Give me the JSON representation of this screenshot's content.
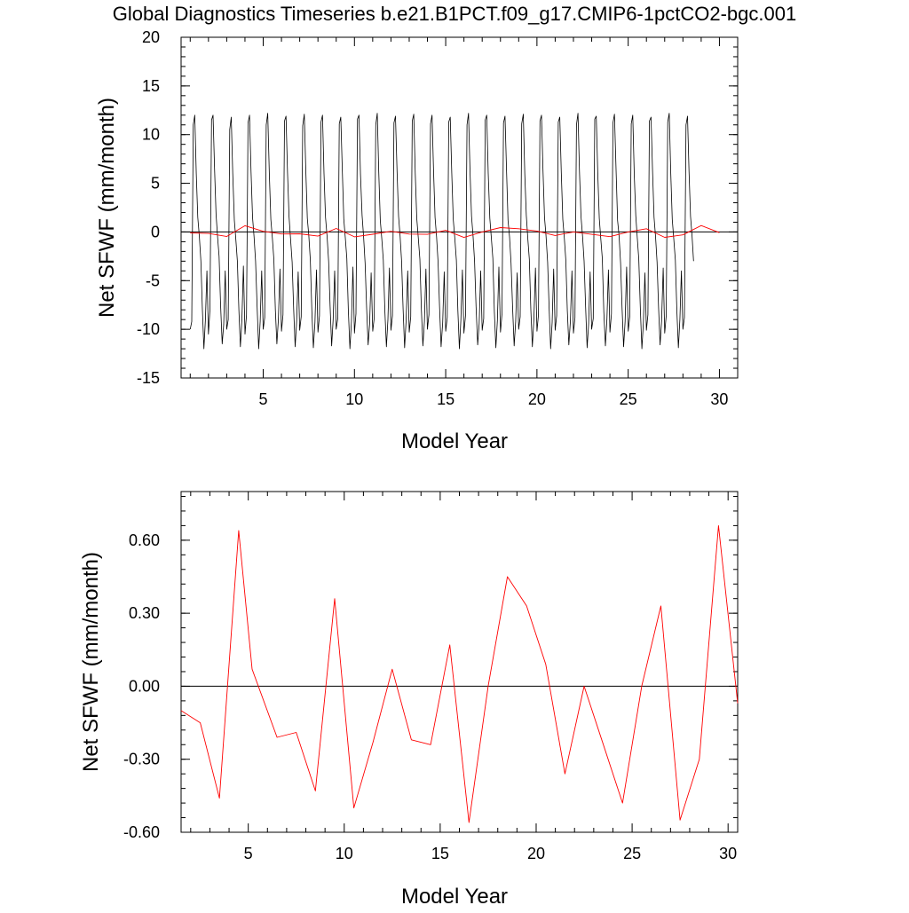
{
  "title": "Global Diagnostics Timeseries b.e21.B1PCT.f09_g17.CMIP6-1pctCO2-bgc.001",
  "colors": {
    "monthly": "#000000",
    "annual": "#ff0000",
    "zero_line": "#000000",
    "axes": "#000000"
  },
  "chart_data": [
    {
      "type": "line",
      "xlabel": "Model Year",
      "ylabel": "Net SFWF (mm/month)",
      "xlim": [
        0.5,
        31.0
      ],
      "ylim": [
        -15,
        20
      ],
      "x_ticks": [
        "5",
        "10",
        "15",
        "20",
        "25",
        "30"
      ],
      "y_ticks": [
        "-15",
        "-10",
        "-5",
        "0",
        "5",
        "10",
        "15",
        "20"
      ],
      "zero_line": true,
      "series": [
        {
          "color": "black",
          "values": [
            -10.0,
            -9.2,
            11.0,
            12.0,
            6.0,
            1.5,
            -0.5,
            -3.0,
            -8.0,
            -12.0,
            -9.0,
            -4.0,
            -10.5,
            -8.0,
            11.5,
            12.0,
            6.5,
            1.8,
            -0.5,
            -2.5,
            -7.5,
            -11.5,
            -9.5,
            -4.0,
            -10.0,
            -9.0,
            10.5,
            11.8,
            6.0,
            1.2,
            -0.8,
            -3.0,
            -8.0,
            -11.8,
            -9.0,
            -3.5,
            -10.5,
            -8.5,
            11.2,
            12.0,
            6.2,
            1.5,
            -0.5,
            -3.0,
            -7.8,
            -12.0,
            -9.2,
            -4.0,
            -10.0,
            -8.8,
            11.0,
            12.2,
            6.0,
            1.3,
            -0.6,
            -2.8,
            -8.0,
            -11.5,
            -9.0,
            -3.8,
            -10.2,
            -8.5,
            11.4,
            11.9,
            6.1,
            1.6,
            -0.7,
            -3.1,
            -7.9,
            -11.8,
            -9.1,
            -4.1,
            -10.1,
            -8.7,
            10.9,
            12.1,
            6.3,
            1.4,
            -0.4,
            -2.9,
            -8.1,
            -11.9,
            -9.3,
            -3.9,
            -10.3,
            -8.6,
            11.3,
            12.0,
            6.0,
            1.5,
            -0.5,
            -3.0,
            -7.7,
            -11.7,
            -9.0,
            -4.0,
            -10.0,
            -8.9,
            11.1,
            11.8,
            6.4,
            1.3,
            -0.6,
            -2.7,
            -8.0,
            -12.0,
            -9.2,
            -3.6,
            -10.4,
            -8.4,
            11.6,
            12.0,
            5.9,
            1.7,
            -0.5,
            -3.2,
            -7.8,
            -11.6,
            -9.4,
            -4.2,
            -10.2,
            -8.8,
            11.0,
            12.2,
            6.1,
            1.2,
            -0.7,
            -2.9,
            -8.2,
            -11.8,
            -9.0,
            -3.7,
            -10.1,
            -8.6,
            11.2,
            11.9,
            6.2,
            1.6,
            -0.4,
            -3.0,
            -7.9,
            -11.9,
            -9.1,
            -4.0,
            -10.3,
            -8.7,
            11.4,
            12.1,
            6.0,
            1.4,
            -0.6,
            -2.8,
            -8.0,
            -11.7,
            -9.2,
            -3.8,
            -10.0,
            -8.5,
            11.1,
            12.0,
            6.3,
            1.5,
            -0.5,
            -3.1,
            -7.8,
            -11.8,
            -9.3,
            -4.1,
            -10.2,
            -8.8,
            11.3,
            11.8,
            6.1,
            1.3,
            -0.7,
            -2.9,
            -8.1,
            -12.0,
            -9.0,
            -3.9,
            -10.4,
            -8.6,
            11.0,
            12.2,
            6.2,
            1.6,
            -0.4,
            -3.0,
            -7.7,
            -11.6,
            -9.4,
            -4.0,
            -10.1,
            -8.9,
            11.5,
            12.0,
            6.0,
            1.4,
            -0.6,
            -2.7,
            -8.2,
            -11.9,
            -9.1,
            -3.6,
            -10.3,
            -8.4,
            11.2,
            11.9,
            6.4,
            1.2,
            -0.5,
            -3.2,
            -7.9,
            -11.7,
            -9.2,
            -4.2,
            -10.0,
            -8.7,
            11.1,
            12.1,
            5.9,
            1.7,
            -0.7,
            -2.8,
            -8.0,
            -11.8,
            -9.0,
            -3.7,
            -10.2,
            -8.5,
            11.4,
            12.0,
            6.3,
            1.5,
            -0.4,
            -3.1,
            -7.8,
            -12.0,
            -9.3,
            -3.8,
            -10.1,
            -8.6,
            11.3,
            11.8,
            6.1,
            1.3,
            -0.6,
            -2.9,
            -8.1,
            -11.6,
            -9.1,
            -4.0,
            -10.4,
            -8.8,
            11.0,
            12.2,
            6.2,
            1.6,
            -0.5,
            -3.0,
            -7.7,
            -11.9,
            -9.4,
            -4.1,
            -10.0,
            -8.9,
            11.6,
            11.9,
            6.0,
            1.4,
            -0.7,
            -2.7,
            -8.2,
            -11.7,
            -9.0,
            -3.9,
            -10.3,
            -8.4,
            11.2,
            12.1,
            6.4,
            1.2,
            -0.4,
            -3.2,
            -7.9,
            -11.8,
            -9.2,
            -3.6,
            -10.2,
            -8.7,
            11.1,
            12.0,
            5.9,
            1.7,
            -0.6,
            -2.8,
            -8.0,
            -12.0,
            -9.3,
            -4.2,
            -10.1,
            -8.5,
            11.4,
            11.8,
            6.3,
            1.5,
            -0.5,
            -3.1,
            -7.8,
            -11.6,
            -9.1,
            -3.7,
            -10.4,
            -8.6,
            11.3,
            12.2,
            6.1,
            1.3,
            -0.7,
            -2.9,
            -8.1,
            -11.9,
            -9.0,
            -4.0,
            -10.0,
            -8.8,
            11.0,
            11.9,
            6.2,
            1.6,
            -0.4,
            -3.0
          ]
        },
        {
          "color": "red",
          "values": [
            -0.1,
            -0.15,
            -0.46,
            0.64,
            0.07,
            -0.21,
            -0.19,
            -0.43,
            0.36,
            -0.5,
            -0.23,
            0.07,
            -0.22,
            -0.24,
            0.17,
            -0.56,
            0.0,
            0.45,
            0.33,
            0.09,
            -0.36,
            0.0,
            -0.24,
            -0.48,
            0.0,
            0.33,
            -0.55,
            -0.3,
            0.66,
            -0.07
          ]
        }
      ]
    },
    {
      "type": "line",
      "xlabel": "Model Year",
      "ylabel": "Net SFWF (mm/month)",
      "xlim": [
        1.5,
        30.5
      ],
      "ylim": [
        -0.6,
        0.8
      ],
      "x_ticks": [
        "5",
        "10",
        "15",
        "20",
        "25",
        "30"
      ],
      "y_ticks": [
        "-0.60",
        "-0.30",
        "0.00",
        "0.30",
        "0.60"
      ],
      "zero_line": true,
      "series": [
        {
          "color": "red",
          "x": [
            1.5,
            2.5,
            3.5,
            4.5,
            5.2,
            6.5,
            7.5,
            8.5,
            9.5,
            10.5,
            11.5,
            12.5,
            13.5,
            14.5,
            15.5,
            16.5,
            17.5,
            18.5,
            19.5,
            20.5,
            21.5,
            22.5,
            23.5,
            24.5,
            25.5,
            26.5,
            27.5,
            28.5,
            29.5,
            30.5
          ],
          "values": [
            -0.1,
            -0.15,
            -0.46,
            0.64,
            0.07,
            -0.21,
            -0.19,
            -0.43,
            0.36,
            -0.5,
            -0.23,
            0.07,
            -0.22,
            -0.24,
            0.17,
            -0.56,
            0.0,
            0.45,
            0.33,
            0.09,
            -0.36,
            0.0,
            -0.24,
            -0.48,
            0.0,
            0.33,
            -0.55,
            -0.3,
            0.66,
            -0.07
          ]
        }
      ]
    }
  ]
}
